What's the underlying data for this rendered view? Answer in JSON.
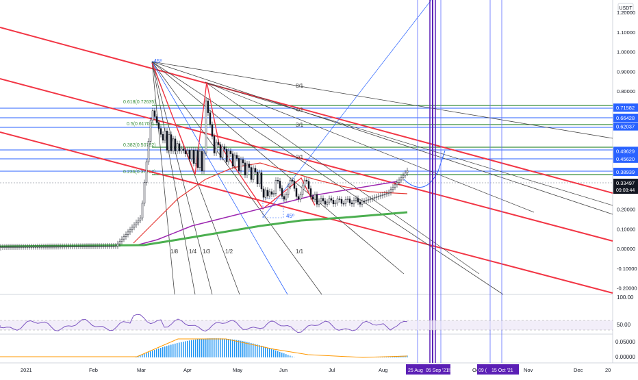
{
  "currency_badge": "USDT",
  "price_axis": {
    "main_labels": [
      "1.20000",
      "1.10000",
      "1.00000",
      "0.90000",
      "0.80000",
      "0.20000",
      "0.10000",
      "0.00000",
      "-0.10000",
      "-0.20000"
    ],
    "main_values": [
      1.2,
      1.1,
      1.0,
      0.9,
      0.8,
      0.2,
      0.1,
      0.0,
      -0.1,
      -0.2
    ],
    "highlight_labels": [
      {
        "text": "0.71582",
        "value": 0.71582,
        "color": "#2962ff"
      },
      {
        "text": "0.66428",
        "value": 0.66428,
        "color": "#2962ff"
      },
      {
        "text": "0.62037",
        "value": 0.62037,
        "color": "#2962ff"
      },
      {
        "text": "0.49629",
        "value": 0.49629,
        "color": "#2962ff"
      },
      {
        "text": "0.45620",
        "value": 0.4562,
        "color": "#2962ff"
      },
      {
        "text": "0.38939",
        "value": 0.38939,
        "color": "#2962ff"
      }
    ],
    "current_price": "0.33497",
    "countdown": "09:08:44",
    "rsi_labels": [
      "100.00",
      "50.00"
    ],
    "macd_labels": [
      "0.05000",
      "0.00000"
    ]
  },
  "time_axis": {
    "labels": [
      "2021",
      "Feb",
      "Mar",
      "Apr",
      "May",
      "Jun",
      "Jul",
      "Aug",
      "Oct",
      "Nov",
      "Dec",
      "20"
    ],
    "date_badges": [
      "25 Aug '",
      "05 Sep '21",
      "!!",
      "09 (",
      "15 Oct '21"
    ]
  },
  "annotations": {
    "fib_labels": [
      "0.618(0.72635)",
      "0.5(0.61708)",
      "0.382(0.50782)",
      "0.236(0.37262)"
    ],
    "gann_labels": [
      "8/1",
      "4/1",
      "3/1",
      "2/1",
      "1/8",
      "1/4",
      "1/3",
      "1/2",
      "1/1",
      "1/1"
    ],
    "angle_labels": [
      "-45º",
      "45º"
    ]
  },
  "colors": {
    "price_line_blue": "#2962ff",
    "fib_green": "#388e3c",
    "red_channel": "#f23645",
    "ma_purple": "#9c27b0",
    "ma_green": "#4caf50",
    "ma_red": "#e53935",
    "vertical_purple": "#5b1fb5",
    "rsi_line": "#7e57c2",
    "macd_hist": "#2196f3",
    "macd_signal": "#ff9800"
  },
  "chart_data": {
    "type": "candlestick",
    "symbol_quote": "USDT",
    "x_axis_months": [
      "2021",
      "Feb",
      "Mar",
      "Apr",
      "May",
      "Jun",
      "Jul",
      "Aug",
      "Oct",
      "Nov",
      "Dec",
      "20"
    ],
    "ylim": [
      -0.2,
      1.2
    ],
    "horizontal_levels": [
      0.71582,
      0.66428,
      0.62037,
      0.49629,
      0.4562,
      0.38939
    ],
    "fib_retracement": [
      {
        "ratio": "0.618",
        "price": 0.72635
      },
      {
        "ratio": "0.5",
        "price": 0.61708
      },
      {
        "ratio": "0.382",
        "price": 0.50782
      },
      {
        "ratio": "0.236",
        "price": 0.37262
      }
    ],
    "last_price": 0.33497,
    "rsi_levels": [
      100,
      50
    ],
    "macd_levels": [
      0.05,
      0.0
    ]
  }
}
